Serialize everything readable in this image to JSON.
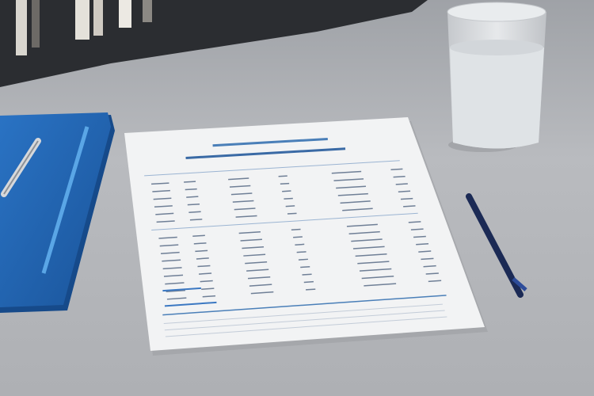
{
  "scene": {
    "description_colors": {
      "desk": "#b4b6ba",
      "shelf": "#2b2d31",
      "folder": "#1f63b0",
      "paper": "#f2f3f4",
      "accent": "#3b78c2",
      "pen": "#1b2a55"
    }
  }
}
